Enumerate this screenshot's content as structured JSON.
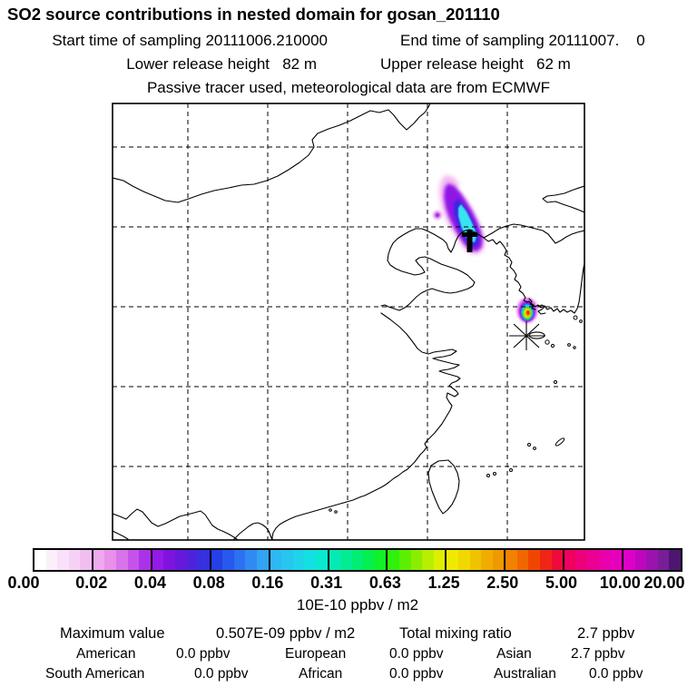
{
  "header": {
    "title": "SO2 source contributions in nested domain for gosan_201110",
    "start_time": "Start time of sampling 20111006.210000",
    "end_time": "End time of sampling 20111007.    0",
    "lower_release": "Lower release height   82 m",
    "upper_release": "Upper release height   62 m",
    "tracer_note": "Passive tracer used, meteorological data are from ECMWF"
  },
  "colorbar": {
    "labels": [
      "0.00",
      "0.02",
      "0.04",
      "0.08",
      "0.16",
      "0.31",
      "0.63",
      "1.25",
      "2.50",
      "5.00",
      "10.00",
      "20.00"
    ],
    "unit": "10E-10 ppbv / m2",
    "segments": [
      [
        "#FFFFFF",
        "#FCEFFC",
        "#FAE0FA",
        "#F7D0F7",
        "#F2BEF2"
      ],
      [
        "#EFA9EF",
        "#E891E9",
        "#D873EA",
        "#C353EA",
        "#AC32E9"
      ],
      [
        "#951AE5",
        "#7E14DE",
        "#6619DB",
        "#4D24DC",
        "#3530E0"
      ],
      [
        "#2440E6",
        "#2858EC",
        "#2C71F0",
        "#2F8AF2",
        "#32A3F4"
      ],
      [
        "#2EB8F2",
        "#26C6EE",
        "#1DD4E9",
        "#13E0E0",
        "#0AE8D0"
      ],
      [
        "#05EAB5",
        "#02EC96",
        "#00EE74",
        "#04F04E",
        "#10F128"
      ],
      [
        "#2FF10A",
        "#5DEF02",
        "#8BEE00",
        "#B8EE00",
        "#DDEF00"
      ],
      [
        "#F0EA00",
        "#F0D800",
        "#F0C300",
        "#F0AD00",
        "#F09800"
      ],
      [
        "#F08200",
        "#F06700",
        "#F04700",
        "#F02517",
        "#F00A3A"
      ],
      [
        "#F00060",
        "#EE007C",
        "#EC0094",
        "#EA00AA",
        "#E700BC"
      ],
      [
        "#DE00C8",
        "#BE06BE",
        "#9C12AE",
        "#781E98",
        "#4E1670"
      ]
    ]
  },
  "stats": {
    "max_label": "Maximum value",
    "max_value": "0.507E-09 ppbv / m2",
    "ratio_label": "Total mixing ratio",
    "ratio_value": "2.7 ppbv",
    "rows": [
      [
        {
          "label": "American",
          "value": "0.0 ppbv"
        },
        {
          "label": "European",
          "value": "0.0 ppbv"
        },
        {
          "label": "Asian",
          "value": "2.7 ppbv"
        }
      ],
      [
        {
          "label": "South American",
          "value": "0.0 ppbv"
        },
        {
          "label": "African",
          "value": "0.0 ppbv"
        },
        {
          "label": "Australian",
          "value": "0.0 ppbv"
        }
      ]
    ]
  },
  "chart_data": {
    "type": "heatmap",
    "title": "SO2 source contributions in nested domain for gosan_201110",
    "station": "gosan",
    "period": "201110",
    "start_time_of_sampling": "20111006.210000",
    "end_time_of_sampling": "20111007. 0",
    "lower_release_height_m": 82,
    "upper_release_height_m": 62,
    "tracer_note": "Passive tracer used, meteorological data are from ECMWF",
    "colorbar_scale": [
      0.0,
      0.02,
      0.04,
      0.08,
      0.16,
      0.31,
      0.63,
      1.25,
      2.5,
      5.0,
      10.0,
      20.0
    ],
    "colorbar_unit": "10E-10 ppbv / m2",
    "maximum_value": "0.507E-09 ppbv / m2",
    "total_mixing_ratio_ppbv": 2.7,
    "contributions_ppbv": {
      "American": 0.0,
      "European": 0.0,
      "Asian": 2.7,
      "South American": 0.0,
      "African": 0.0,
      "Australian": 0.0
    },
    "features": [
      {
        "name": "plume-north-china",
        "description": "Elongated plume over the Bohai/Liaoning region; cyan core (~0.08-0.31 scale) surrounded by blue, purple and pale-pink fringe; black source tick at its southern end."
      },
      {
        "name": "hotspot-near-gosan",
        "description": "Small intense spot just northwest of the Gosan station marker; red core (>2.5) ringed by orange, yellow, green, cyan, violet and magenta."
      },
      {
        "name": "station-marker",
        "description": "Large asterisk marking the Gosan receptor site near Jeju island."
      }
    ],
    "legend_position": "bottom",
    "grid": true
  }
}
